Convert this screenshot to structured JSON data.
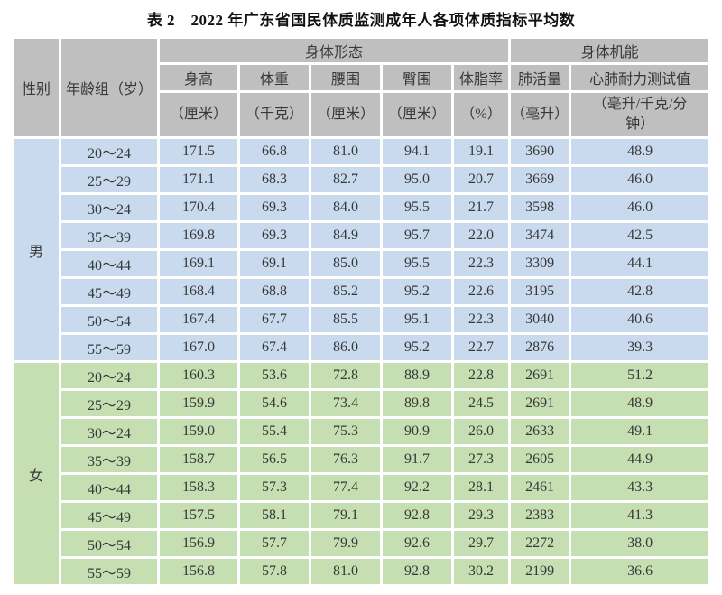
{
  "title": "表 2　2022 年广东省国民体质监测成年人各项体质指标平均数",
  "colors": {
    "header_bg": "#bfbfbf",
    "male_bg": "#c9daee",
    "female_bg": "#c5dfb3",
    "text": "#383838"
  },
  "table": {
    "header": {
      "gender_label": "性别",
      "age_group_label": "年龄组（岁）",
      "groups": [
        {
          "label": "身体形态"
        },
        {
          "label": "身体机能"
        }
      ],
      "columns": [
        {
          "name": "身高",
          "unit": "（厘米）"
        },
        {
          "name": "体重",
          "unit": "（千克）"
        },
        {
          "name": "腰围",
          "unit": "（厘米）"
        },
        {
          "name": "臀围",
          "unit": "（厘米）"
        },
        {
          "name": "体脂率",
          "unit": "（%）"
        },
        {
          "name": "肺活量",
          "unit": "（毫升）"
        },
        {
          "name": "心肺耐力测试值",
          "unit": "（毫升/千克/分\n钟）"
        }
      ]
    },
    "sections": [
      {
        "gender": "男",
        "rows": [
          {
            "age": "20～24",
            "values": [
              "171.5",
              "66.8",
              "81.0",
              "94.1",
              "19.1",
              "3690",
              "48.9"
            ]
          },
          {
            "age": "25～29",
            "values": [
              "171.1",
              "68.3",
              "82.7",
              "95.0",
              "20.7",
              "3669",
              "46.0"
            ]
          },
          {
            "age": "30～24",
            "values": [
              "170.4",
              "69.3",
              "84.0",
              "95.5",
              "21.7",
              "3598",
              "46.0"
            ]
          },
          {
            "age": "35～39",
            "values": [
              "169.8",
              "69.3",
              "84.9",
              "95.7",
              "22.0",
              "3474",
              "42.5"
            ]
          },
          {
            "age": "40～44",
            "values": [
              "169.1",
              "69.1",
              "85.0",
              "95.5",
              "22.3",
              "3309",
              "44.1"
            ]
          },
          {
            "age": "45～49",
            "values": [
              "168.4",
              "68.8",
              "85.2",
              "95.2",
              "22.6",
              "3195",
              "42.8"
            ]
          },
          {
            "age": "50～54",
            "values": [
              "167.4",
              "67.7",
              "85.5",
              "95.1",
              "22.3",
              "3040",
              "40.6"
            ]
          },
          {
            "age": "55～59",
            "values": [
              "167.0",
              "67.4",
              "86.0",
              "95.2",
              "22.7",
              "2876",
              "39.3"
            ]
          }
        ]
      },
      {
        "gender": "女",
        "rows": [
          {
            "age": "20～24",
            "values": [
              "160.3",
              "53.6",
              "72.8",
              "88.9",
              "22.8",
              "2691",
              "51.2"
            ]
          },
          {
            "age": "25～29",
            "values": [
              "159.9",
              "54.6",
              "73.4",
              "89.8",
              "24.5",
              "2691",
              "48.9"
            ]
          },
          {
            "age": "30～24",
            "values": [
              "159.0",
              "55.4",
              "75.3",
              "90.9",
              "26.0",
              "2633",
              "49.1"
            ]
          },
          {
            "age": "35～39",
            "values": [
              "158.7",
              "56.5",
              "76.3",
              "91.7",
              "27.3",
              "2605",
              "44.9"
            ]
          },
          {
            "age": "40～44",
            "values": [
              "158.3",
              "57.3",
              "77.4",
              "92.2",
              "28.1",
              "2461",
              "43.3"
            ]
          },
          {
            "age": "45～49",
            "values": [
              "157.5",
              "58.1",
              "79.1",
              "92.8",
              "29.3",
              "2383",
              "41.3"
            ]
          },
          {
            "age": "50～54",
            "values": [
              "156.9",
              "57.7",
              "79.9",
              "92.6",
              "29.7",
              "2272",
              "38.0"
            ]
          },
          {
            "age": "55～59",
            "values": [
              "156.8",
              "57.8",
              "81.0",
              "92.8",
              "30.2",
              "2199",
              "36.6"
            ]
          }
        ]
      }
    ]
  }
}
